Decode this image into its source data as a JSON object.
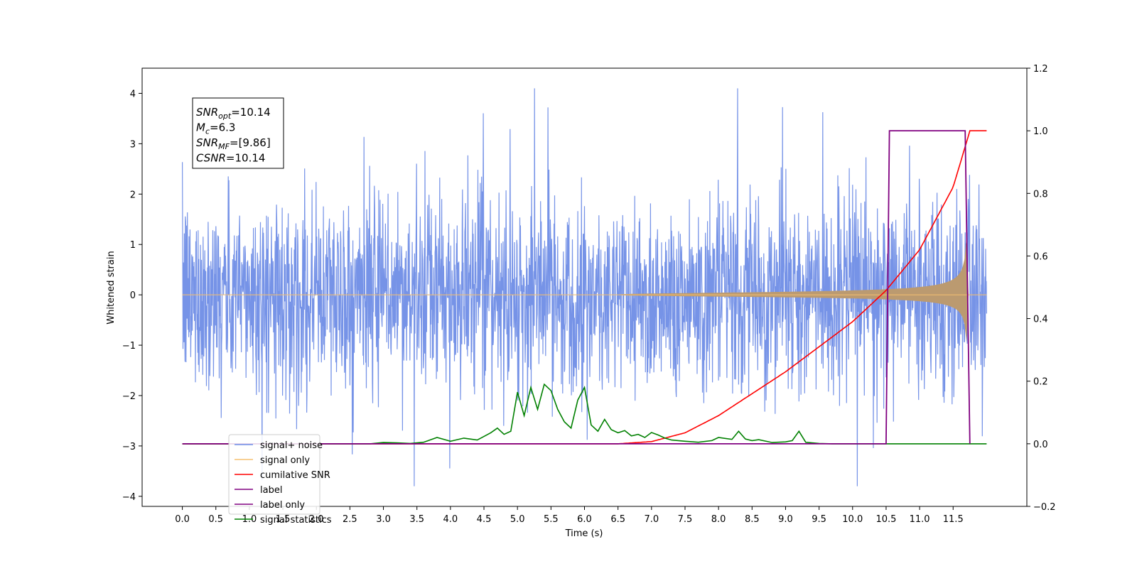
{
  "chart_data": {
    "type": "line",
    "xlabel": "Time (s)",
    "ylabel": "Whitened strain",
    "xlim": [
      -0.6,
      12.6
    ],
    "ylim": [
      -4.2,
      4.5
    ],
    "y2lim": [
      -0.2,
      1.2
    ],
    "grid": false,
    "legend_placement": "lower-left",
    "x_ticks": [
      "0.0",
      "0.5",
      "1.0",
      "1.5",
      "2.0",
      "2.5",
      "3.0",
      "3.5",
      "4.0",
      "4.5",
      "5.0",
      "5.5",
      "6.0",
      "6.5",
      "7.0",
      "7.5",
      "8.0",
      "8.5",
      "9.0",
      "9.5",
      "10.0",
      "10.5",
      "11.0",
      "11.5"
    ],
    "y_ticks": [
      "−4",
      "−3",
      "−2",
      "−1",
      "0",
      "1",
      "2",
      "3",
      "4"
    ],
    "y2_ticks": [
      "−0.2",
      "0.0",
      "0.2",
      "0.4",
      "0.6",
      "0.8",
      "1.0",
      "1.2"
    ],
    "annotation": [
      {
        "base": "SNR",
        "sub": "opt",
        "value": "=10.14"
      },
      {
        "base": "M",
        "sub": "c",
        "value": "=6.3"
      },
      {
        "base": "SNR",
        "sub": "MF",
        "value": "=[9.86]"
      },
      {
        "base": "CSNR",
        "sub": "",
        "value": "=10.14"
      }
    ],
    "series": [
      {
        "name": "signal+ noise",
        "color": "#6f8de6",
        "axis": "left",
        "x_range": [
          0.0,
          12.0
        ],
        "amplitude_typical": 1.6,
        "amplitude_peak": 4.1
      },
      {
        "name": "signal only",
        "color": "#f5c171",
        "axis": "left",
        "chirp_start": 6.5,
        "merger": 11.72,
        "peak_amplitude": 1.15
      },
      {
        "name": "cumilative SNR",
        "color": "#ff0000",
        "axis": "right",
        "x": [
          0.0,
          6.5,
          7.0,
          7.5,
          8.0,
          8.5,
          9.0,
          9.5,
          10.0,
          10.5,
          11.0,
          11.5,
          11.75,
          12.0
        ],
        "y": [
          0.0,
          0.0,
          0.007,
          0.035,
          0.09,
          0.16,
          0.23,
          0.31,
          0.39,
          0.49,
          0.62,
          0.82,
          1.0,
          1.0
        ]
      },
      {
        "name": "label",
        "color": "#800080",
        "axis": "right",
        "x": [
          0.0,
          10.5,
          10.55,
          11.68,
          11.75
        ],
        "y": [
          0.0,
          0.0,
          1.0,
          1.0,
          0.0
        ]
      },
      {
        "name": "label only",
        "color": "#800080",
        "axis": "right"
      },
      {
        "name": "signal statistics",
        "color": "#008000",
        "axis": "right",
        "x": [
          0.0,
          2.8,
          3.0,
          3.2,
          3.4,
          3.6,
          3.8,
          4.0,
          4.2,
          4.4,
          4.6,
          4.7,
          4.8,
          4.9,
          5.0,
          5.1,
          5.2,
          5.3,
          5.4,
          5.5,
          5.6,
          5.7,
          5.8,
          5.9,
          6.0,
          6.1,
          6.2,
          6.3,
          6.4,
          6.5,
          6.6,
          6.7,
          6.8,
          6.9,
          7.0,
          7.1,
          7.2,
          7.3,
          7.5,
          7.7,
          7.9,
          8.0,
          8.2,
          8.3,
          8.4,
          8.5,
          8.6,
          8.8,
          9.0,
          9.1,
          9.2,
          9.3,
          9.5,
          9.7,
          12.0
        ],
        "y": [
          0.0,
          0.0,
          0.004,
          0.003,
          0.001,
          0.005,
          0.02,
          0.008,
          0.018,
          0.012,
          0.035,
          0.05,
          0.03,
          0.04,
          0.165,
          0.09,
          0.18,
          0.11,
          0.19,
          0.17,
          0.11,
          0.07,
          0.05,
          0.14,
          0.18,
          0.06,
          0.04,
          0.078,
          0.045,
          0.035,
          0.042,
          0.025,
          0.03,
          0.02,
          0.036,
          0.028,
          0.018,
          0.012,
          0.008,
          0.005,
          0.01,
          0.02,
          0.014,
          0.04,
          0.015,
          0.01,
          0.013,
          0.004,
          0.006,
          0.01,
          0.04,
          0.005,
          0.001,
          0.0,
          0.0
        ]
      }
    ]
  }
}
